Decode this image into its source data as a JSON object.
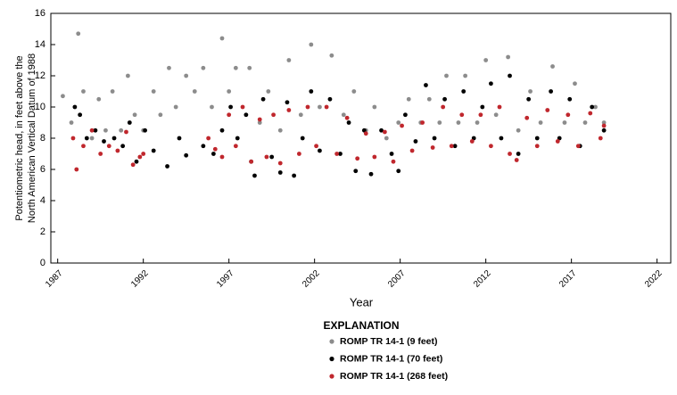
{
  "chart_data": {
    "type": "scatter",
    "ylabel": [
      "Potentiometric head, in feet above the",
      "North American Vertical Datum of 1988"
    ],
    "xlabel": "Year",
    "legend_title": "EXPLANATION",
    "xlim": [
      1986.6,
      2022.8
    ],
    "ylim": [
      0,
      16
    ],
    "xticks": [
      1987,
      1992,
      1997,
      2002,
      2007,
      2012,
      2017,
      2022
    ],
    "yticks": [
      0,
      2,
      4,
      6,
      8,
      10,
      12,
      14,
      16
    ],
    "grid": false,
    "series": [
      {
        "name": "ROMP TR 14-1 (9 feet)",
        "color": "#8c8c8c",
        "x": [
          1987.3,
          1987.8,
          1988.2,
          1988.5,
          1989,
          1989.4,
          1989.8,
          1990.2,
          1990.7,
          1991.1,
          1991.5,
          1992.0,
          1992.6,
          1993.0,
          1993.5,
          1993.9,
          1994.5,
          1995.0,
          1995.5,
          1996.0,
          1996.6,
          1997.0,
          1997.4,
          1998.2,
          1998.8,
          1999.3,
          2000,
          2000.5,
          2001.2,
          2001.8,
          2002.3,
          2003,
          2003.7,
          2004.3,
          2005,
          2005.5,
          2006.2,
          2006.9,
          2007.5,
          2008.2,
          2008.7,
          2009.3,
          2009.7,
          2010.4,
          2010.8,
          2011.5,
          2012.0,
          2012.6,
          2013.3,
          2013.9,
          2014.6,
          2015.2,
          2015.9,
          2016.6,
          2017.2,
          2017.8,
          2018.4,
          2018.9
        ],
        "values": [
          10.7,
          9,
          14.7,
          11,
          8,
          10.5,
          8.5,
          11,
          8.5,
          12,
          9.5,
          8.5,
          11,
          9.5,
          12.5,
          10,
          12,
          11,
          12.5,
          10,
          14.4,
          11,
          12.5,
          12.5,
          9,
          11,
          8.5,
          13,
          9.5,
          14,
          10,
          13.3,
          9.5,
          11,
          8.5,
          10,
          8,
          9,
          10.5,
          9,
          10.5,
          9,
          12,
          9,
          12,
          9,
          13,
          9.5,
          13.2,
          8.5,
          11,
          9,
          12.6,
          9,
          11.5,
          9,
          10,
          9
        ]
      },
      {
        "name": "ROMP TR 14-1 (70 feet)",
        "color": "#000000",
        "x": [
          1988.0,
          1988.3,
          1988.7,
          1989.2,
          1989.7,
          1990.3,
          1990.8,
          1991.2,
          1991.6,
          1992.1,
          1992.6,
          1993.4,
          1994.1,
          1994.5,
          1995.5,
          1996.1,
          1996.6,
          1997.1,
          1997.5,
          1998.0,
          1998.3,
          1998.5,
          1999,
          1999.5,
          2000,
          2000.4,
          2000.8,
          2001.3,
          2001.8,
          2002.3,
          2002.9,
          2003.5,
          2004,
          2004.4,
          2004.9,
          2005.3,
          2005.9,
          2006.5,
          2006.9,
          2007.3,
          2007.9,
          2008.5,
          2009,
          2009.6,
          2010.2,
          2010.7,
          2011.3,
          2011.8,
          2012.3,
          2012.9,
          2013.4,
          2013.9,
          2014.5,
          2015,
          2015.8,
          2016.3,
          2016.9,
          2017.5,
          2018.2,
          2018.9
        ],
        "values": [
          10,
          9.5,
          8,
          8.5,
          7.8,
          8,
          7.5,
          9,
          6.5,
          8.5,
          7.2,
          6.2,
          8,
          6.9,
          7.5,
          7,
          8.5,
          10,
          8,
          9.5,
          6.5,
          5.6,
          10.5,
          6.8,
          5.8,
          10.3,
          5.6,
          8,
          11,
          7.2,
          10.5,
          7,
          9,
          5.9,
          8.5,
          5.7,
          8.5,
          7,
          5.9,
          9.5,
          7.8,
          11.4,
          8,
          10.5,
          7.5,
          11,
          8,
          10,
          11.5,
          8,
          12,
          7,
          10.5,
          8,
          11,
          8,
          10.5,
          7.5,
          10,
          8.5
        ]
      },
      {
        "name": "ROMP TR 14-1 (268 feet)",
        "color": "#c0272d",
        "x": [
          1987.9,
          1988.1,
          1988.5,
          1989,
          1989.5,
          1990,
          1990.5,
          1991.0,
          1991.4,
          1991.8,
          1992.0,
          1995.8,
          1996.2,
          1996.6,
          1997.0,
          1997.4,
          1997.8,
          1998.3,
          1998.8,
          1999.2,
          1999.6,
          2000,
          2000.5,
          2001.1,
          2001.6,
          2002.1,
          2002.7,
          2003.3,
          2003.9,
          2004.5,
          2005,
          2005.5,
          2006.1,
          2006.6,
          2007.1,
          2007.7,
          2008.3,
          2008.9,
          2009.5,
          2010,
          2010.6,
          2011.2,
          2011.7,
          2012.3,
          2012.8,
          2013.4,
          2013.8,
          2014.4,
          2015,
          2015.6,
          2016.2,
          2016.8,
          2017.4,
          2018.1,
          2018.7,
          2018.9
        ],
        "values": [
          8,
          6,
          7.5,
          8.5,
          7,
          7.5,
          7.2,
          8.4,
          6.3,
          6.8,
          7,
          8,
          7.3,
          6.8,
          9.5,
          7.5,
          10,
          6.5,
          9.2,
          6.8,
          9.5,
          6.4,
          9.8,
          7,
          10,
          7.5,
          10,
          7,
          9.3,
          6.7,
          8.3,
          6.8,
          8.4,
          6.5,
          8.8,
          7.2,
          9,
          7.4,
          10,
          7.5,
          9.5,
          7.8,
          9.5,
          7.5,
          10,
          7,
          6.6,
          9.3,
          7.5,
          9.8,
          7.8,
          9.5,
          7.5,
          9.6,
          8,
          8.8
        ]
      }
    ]
  }
}
